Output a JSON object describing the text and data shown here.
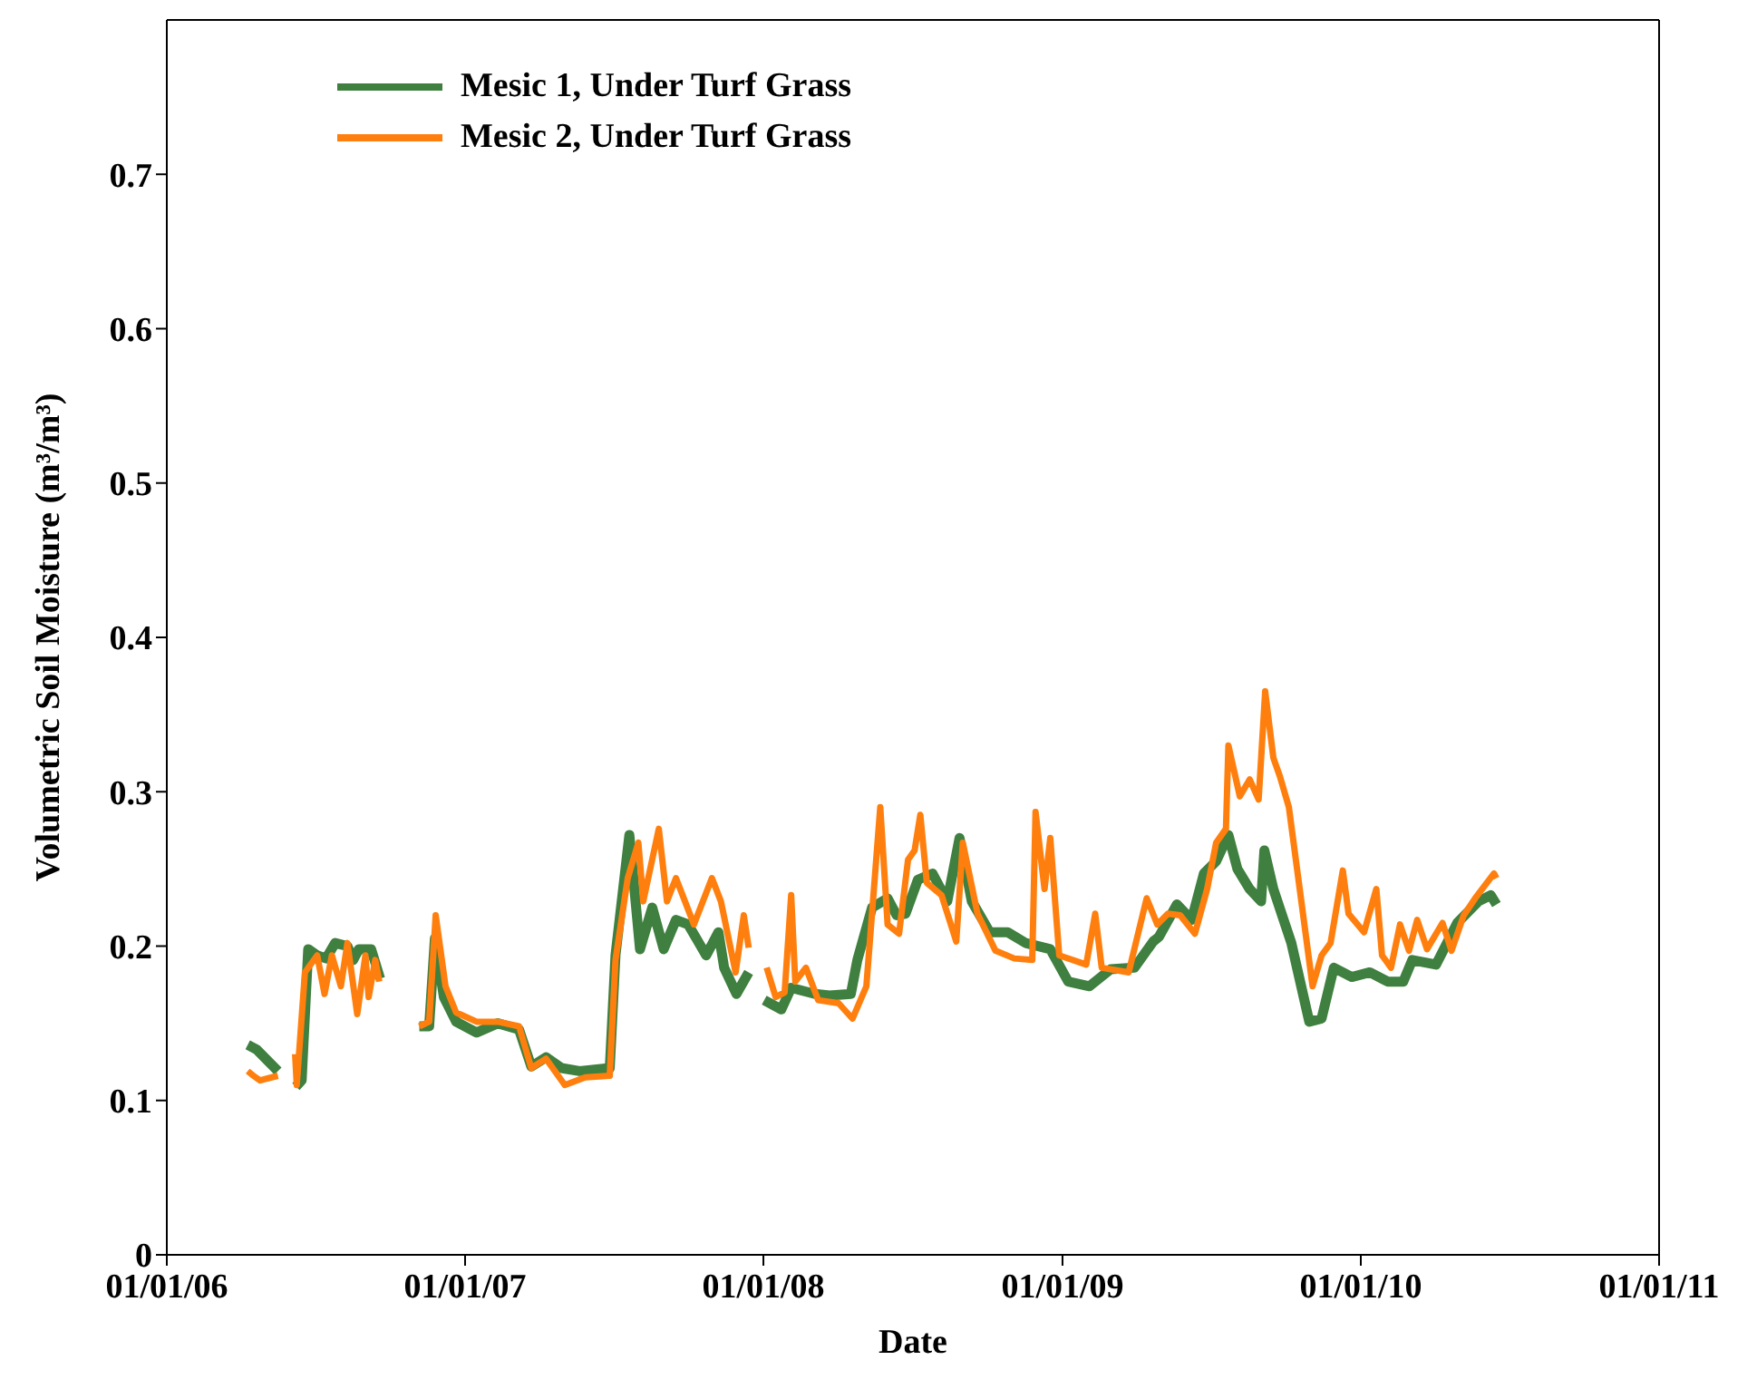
{
  "chart_data": {
    "type": "line",
    "xlabel": "Date",
    "ylabel": "Volumetric Soil Moisture (m³/m³)",
    "xlim": [
      "2006-01-01",
      "2011-01-01"
    ],
    "xticks": [
      {
        "value": "2006-01-01",
        "label": "01/01/06"
      },
      {
        "value": "2007-01-01",
        "label": "01/01/07"
      },
      {
        "value": "2008-01-01",
        "label": "01/01/08"
      },
      {
        "value": "2009-01-01",
        "label": "01/01/09"
      },
      {
        "value": "2010-01-01",
        "label": "01/01/10"
      },
      {
        "value": "2011-01-01",
        "label": "01/01/11"
      }
    ],
    "ylim": [
      0,
      0.8
    ],
    "yticks": [
      0,
      0.1,
      0.2,
      0.3,
      0.4,
      0.5,
      0.6,
      0.7
    ],
    "legend": "top left",
    "marker": "none",
    "line_style": "solid",
    "series": [
      {
        "name": "Mesic 1, Under Turf Grass",
        "color": "#3f7f3f",
        "x": [
          "2006-04-10",
          "2006-04-21",
          "2006-05-17",
          "2006-05-30",
          "2006-06-08",
          "2006-06-15",
          "2006-06-23",
          "2006-07-04",
          "2006-07-15",
          "2006-07-26",
          "2006-08-10",
          "2006-08-17",
          "2006-08-24",
          "2006-09-08",
          "2006-09-19",
          "2006-10-15",
          "2006-11-06",
          "2006-11-18",
          "2006-11-25",
          "2006-12-06",
          "2006-12-21",
          "2007-01-15",
          "2007-02-10",
          "2007-03-08",
          "2007-03-23",
          "2007-04-10",
          "2007-04-29",
          "2007-05-21",
          "2007-06-27",
          "2007-07-04",
          "2007-07-21",
          "2007-08-03",
          "2007-08-18",
          "2007-09-01",
          "2007-09-16",
          "2007-10-01",
          "2007-10-23",
          "2007-11-07",
          "2007-11-14",
          "2007-11-29",
          "2007-12-14",
          "2007-12-25",
          "2008-01-02",
          "2008-01-23",
          "2008-02-04",
          "2008-03-04",
          "2008-03-22",
          "2008-04-17",
          "2008-04-25",
          "2008-05-13",
          "2008-06-01",
          "2008-06-12",
          "2008-06-23",
          "2008-07-08",
          "2008-07-26",
          "2008-08-13",
          "2008-08-28",
          "2008-09-12",
          "2008-10-04",
          "2008-10-26",
          "2008-11-17",
          "2008-12-17",
          "2009-01-08",
          "2009-02-03",
          "2009-03-01",
          "2009-03-30",
          "2009-04-22",
          "2009-04-29",
          "2009-05-21",
          "2009-06-08",
          "2009-06-23",
          "2009-07-08",
          "2009-07-23",
          "2009-08-03",
          "2009-08-18",
          "2009-09-01",
          "2009-09-05",
          "2009-09-16",
          "2009-10-08",
          "2009-10-30",
          "2009-11-14",
          "2009-11-29",
          "2009-12-21",
          "2010-01-12",
          "2010-02-03",
          "2010-02-22",
          "2010-03-05",
          "2010-04-03",
          "2010-04-29",
          "2010-05-25",
          "2010-06-09",
          "2010-06-16"
        ],
        "values": [
          0.136,
          0.133,
          0.119,
          null,
          0.109,
          0.113,
          0.198,
          0.194,
          0.192,
          0.202,
          0.2,
          0.191,
          0.198,
          0.198,
          0.179,
          null,
          0.148,
          0.148,
          0.205,
          0.167,
          0.151,
          0.144,
          0.15,
          0.146,
          0.122,
          0.128,
          0.121,
          0.119,
          0.121,
          0.194,
          0.272,
          0.198,
          0.225,
          0.198,
          0.217,
          0.214,
          0.194,
          0.209,
          0.186,
          0.169,
          0.183,
          null,
          0.165,
          0.159,
          0.173,
          0.169,
          0.168,
          0.169,
          0.191,
          0.225,
          0.231,
          0.22,
          0.221,
          0.243,
          0.247,
          0.229,
          0.27,
          0.229,
          0.209,
          0.209,
          0.202,
          0.198,
          0.177,
          0.174,
          0.185,
          0.186,
          0.203,
          0.206,
          0.227,
          0.217,
          0.247,
          0.255,
          0.272,
          0.25,
          0.237,
          0.229,
          0.262,
          0.237,
          0.202,
          0.151,
          0.153,
          0.186,
          0.18,
          0.183,
          0.177,
          0.177,
          0.191,
          0.188,
          0.215,
          0.229,
          0.233,
          0.227
        ]
      },
      {
        "name": "Mesic 2, Under Turf Grass",
        "color": "#ff7f0e",
        "x": [
          "2006-04-10",
          "2006-04-17",
          "2006-04-25",
          "2006-05-17",
          "2006-05-30",
          "2006-06-07",
          "2006-06-09",
          "2006-06-19",
          "2006-07-04",
          "2006-07-13",
          "2006-07-22",
          "2006-08-02",
          "2006-08-10",
          "2006-08-22",
          "2006-09-01",
          "2006-09-05",
          "2006-09-13",
          "2006-09-18",
          "2006-10-15",
          "2006-11-06",
          "2006-11-18",
          "2006-11-26",
          "2006-12-08",
          "2006-12-21",
          "2007-01-15",
          "2007-02-10",
          "2007-03-08",
          "2007-03-23",
          "2007-04-10",
          "2007-05-03",
          "2007-05-28",
          "2007-06-27",
          "2007-07-04",
          "2007-07-19",
          "2007-08-01",
          "2007-08-07",
          "2007-08-26",
          "2007-09-05",
          "2007-09-16",
          "2007-10-08",
          "2007-10-30",
          "2007-11-10",
          "2007-11-28",
          "2007-12-08",
          "2007-12-14",
          "2007-12-25",
          "2008-01-05",
          "2008-01-16",
          "2008-01-27",
          "2008-02-04",
          "2008-02-09",
          "2008-02-22",
          "2008-03-08",
          "2008-04-02",
          "2008-04-19",
          "2008-05-06",
          "2008-05-23",
          "2008-06-01",
          "2008-06-15",
          "2008-06-26",
          "2008-07-04",
          "2008-07-11",
          "2008-07-19",
          "2008-08-06",
          "2008-08-24",
          "2008-09-01",
          "2008-09-19",
          "2008-10-11",
          "2008-11-03",
          "2008-11-25",
          "2008-11-29",
          "2008-12-10",
          "2008-12-17",
          "2008-12-28",
          "2009-01-30",
          "2009-02-10",
          "2009-02-18",
          "2009-03-23",
          "2009-04-14",
          "2009-04-27",
          "2009-05-10",
          "2009-05-25",
          "2009-06-12",
          "2009-06-27",
          "2009-07-08",
          "2009-07-20",
          "2009-07-23",
          "2009-08-06",
          "2009-08-18",
          "2009-08-29",
          "2009-09-06",
          "2009-09-16",
          "2009-09-24",
          "2009-10-05",
          "2009-11-03",
          "2009-11-14",
          "2009-11-25",
          "2009-12-10",
          "2009-12-17",
          "2010-01-05",
          "2010-01-20",
          "2010-01-27",
          "2010-02-07",
          "2010-02-18",
          "2010-03-01",
          "2010-03-11",
          "2010-03-23",
          "2010-04-11",
          "2010-04-22",
          "2010-05-07",
          "2010-05-21",
          "2010-06-13",
          "2010-06-16"
        ],
        "values": [
          0.119,
          0.116,
          0.113,
          0.116,
          null,
          0.13,
          0.11,
          0.183,
          0.194,
          0.169,
          0.194,
          0.174,
          0.202,
          0.156,
          0.194,
          0.167,
          0.191,
          0.177,
          null,
          0.148,
          0.151,
          0.22,
          0.174,
          0.157,
          0.151,
          0.151,
          0.148,
          0.121,
          0.127,
          0.11,
          0.115,
          0.116,
          0.191,
          0.244,
          0.267,
          0.229,
          0.276,
          0.229,
          0.244,
          0.214,
          0.244,
          0.229,
          0.183,
          0.22,
          0.199,
          null,
          0.186,
          0.167,
          0.17,
          0.233,
          0.177,
          0.186,
          0.165,
          0.163,
          0.153,
          0.174,
          0.29,
          0.214,
          0.208,
          0.256,
          0.262,
          0.285,
          0.241,
          0.233,
          0.203,
          0.267,
          0.221,
          0.197,
          0.192,
          0.191,
          0.287,
          0.237,
          0.27,
          0.194,
          0.188,
          0.221,
          0.186,
          0.183,
          0.231,
          0.214,
          0.221,
          0.22,
          0.208,
          0.237,
          0.267,
          0.276,
          0.33,
          0.297,
          0.308,
          0.295,
          0.365,
          0.322,
          0.31,
          0.29,
          0.174,
          0.194,
          0.202,
          0.249,
          0.221,
          0.209,
          0.237,
          0.194,
          0.186,
          0.214,
          0.197,
          0.217,
          0.198,
          0.215,
          0.197,
          0.22,
          0.231,
          0.247,
          0.244
        ]
      }
    ]
  }
}
